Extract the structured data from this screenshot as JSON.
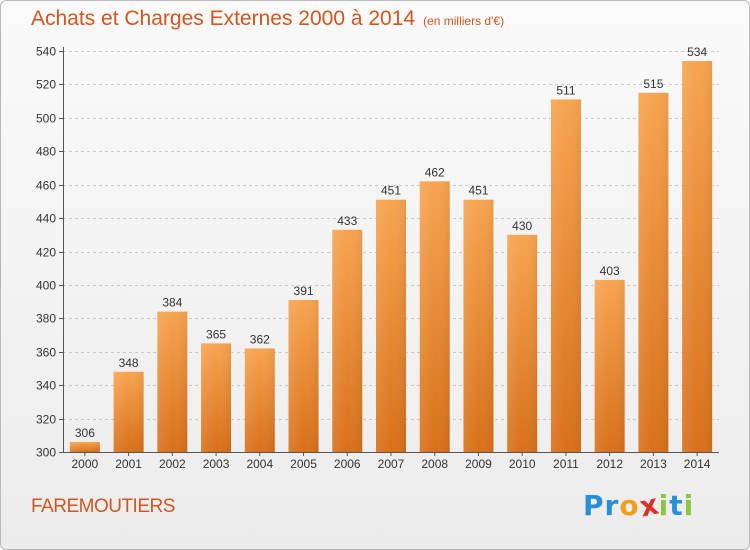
{
  "header": {
    "title": "Achats et Charges Externes 2000 à 2014",
    "subtitle": "(en milliers d'€)"
  },
  "footer": {
    "place": "FAREMOUTIERS",
    "logo_letters": [
      "P",
      "r",
      "o",
      "x",
      "i",
      "t",
      "i"
    ],
    "logo_colors": [
      "#2a8fd6",
      "#2a8fd6",
      "#f0a020",
      "#d8312a",
      "#8cc63f",
      "#2a8fd6",
      "#8cc63f"
    ]
  },
  "chart_data": {
    "type": "bar",
    "title": "Achats et Charges Externes 2000 à 2014",
    "subtitle": "(en milliers d'€)",
    "categories": [
      "2000",
      "2001",
      "2002",
      "2003",
      "2004",
      "2005",
      "2006",
      "2007",
      "2008",
      "2009",
      "2010",
      "2011",
      "2012",
      "2013",
      "2014"
    ],
    "values": [
      306,
      348,
      384,
      365,
      362,
      391,
      433,
      451,
      462,
      451,
      430,
      511,
      403,
      515,
      534
    ],
    "ylim": [
      300,
      540
    ],
    "yticks": [
      300,
      320,
      340,
      360,
      380,
      400,
      420,
      440,
      460,
      480,
      500,
      520,
      540
    ],
    "grid": true,
    "bar_color_top": "#f7a450",
    "bar_color_bottom": "#d8701a"
  }
}
